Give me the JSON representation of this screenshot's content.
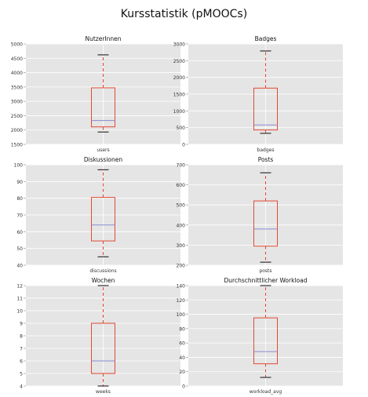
{
  "figure": {
    "title": "Kursstatistik (pMOOCs)",
    "colors": {
      "plot_background": "#e5e5e5",
      "grid": "#ffffff",
      "box": "#e24a33",
      "median": "#8b8bcf",
      "whisker": "#e24a33",
      "cap": "#333333",
      "text": "#333333"
    }
  },
  "chart_data": [
    {
      "type": "box",
      "title": "NutzerInnen",
      "category": "users",
      "ylim": [
        1500,
        5000
      ],
      "yticks": [
        1500,
        2000,
        2500,
        3000,
        3500,
        4000,
        4500,
        5000
      ],
      "stats": {
        "min": 1930,
        "q1": 2110,
        "median": 2330,
        "q3": 3470,
        "max": 4620
      },
      "grid": true
    },
    {
      "type": "box",
      "title": "Badges",
      "category": "badges",
      "ylim": [
        0,
        3000
      ],
      "yticks": [
        0,
        500,
        1000,
        1500,
        2000,
        2500,
        3000
      ],
      "stats": {
        "min": 330,
        "q1": 430,
        "median": 580,
        "q3": 1680,
        "max": 2790
      },
      "grid": true
    },
    {
      "type": "box",
      "title": "Diskussionen",
      "category": "discussions",
      "ylim": [
        40,
        100
      ],
      "yticks": [
        40,
        50,
        60,
        70,
        80,
        90,
        100
      ],
      "stats": {
        "min": 45,
        "q1": 54.5,
        "median": 64,
        "q3": 80.5,
        "max": 97
      },
      "grid": true
    },
    {
      "type": "box",
      "title": "Posts",
      "category": "posts",
      "ylim": [
        200,
        700
      ],
      "yticks": [
        200,
        300,
        400,
        500,
        600,
        700
      ],
      "stats": {
        "min": 215,
        "q1": 295,
        "median": 380,
        "q3": 520,
        "max": 660
      },
      "grid": true
    },
    {
      "type": "box",
      "title": "Wochen",
      "category": "weeks",
      "ylim": [
        4,
        12
      ],
      "yticks": [
        4,
        5,
        6,
        7,
        8,
        9,
        10,
        11,
        12
      ],
      "stats": {
        "min": 4,
        "q1": 5,
        "median": 6,
        "q3": 9,
        "max": 12
      },
      "grid": true
    },
    {
      "type": "box",
      "title": "Durchschnittlicher Workload",
      "category": "workload_avg",
      "ylim": [
        0,
        140
      ],
      "yticks": [
        0,
        20,
        40,
        60,
        80,
        100,
        120,
        140
      ],
      "stats": {
        "min": 12,
        "q1": 31,
        "median": 48,
        "q3": 95,
        "max": 140
      },
      "grid": true
    }
  ]
}
